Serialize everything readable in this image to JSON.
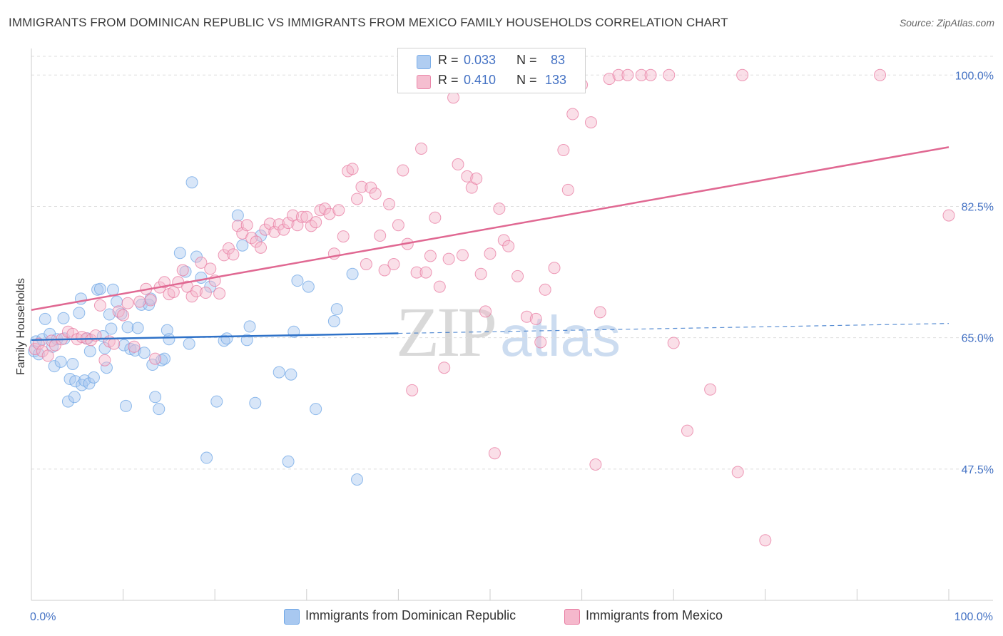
{
  "title": "IMMIGRANTS FROM DOMINICAN REPUBLIC VS IMMIGRANTS FROM MEXICO FAMILY HOUSEHOLDS CORRELATION CHART",
  "source": "Source: ZipAtlas.com",
  "watermark": {
    "zip": "ZIP",
    "atlas": "atlas"
  },
  "stats": [
    {
      "r_label": "R =",
      "r_value": "0.033",
      "n_label": "N =",
      "n_value": "83",
      "color": "#a8c8f0"
    },
    {
      "r_label": "R =",
      "r_value": "0.410",
      "n_label": "N =",
      "n_value": "133",
      "color": "#f5b8cc"
    }
  ],
  "chart_data": {
    "type": "scatter",
    "title": "IMMIGRANTS FROM DOMINICAN REPUBLIC VS IMMIGRANTS FROM MEXICO FAMILY HOUSEHOLDS CORRELATION CHART",
    "xlabel": "",
    "ylabel": "Family Households",
    "xlim": [
      0,
      100
    ],
    "ylim": [
      30,
      102.5
    ],
    "x_tick_labels": [
      "0.0%",
      "100.0%"
    ],
    "y_ticks": [
      47.5,
      65.0,
      82.5,
      100.0
    ],
    "y_tick_labels": [
      "47.5%",
      "65.0%",
      "82.5%",
      "100.0%"
    ],
    "grid": true,
    "legend_position": "bottom",
    "series": [
      {
        "name": "Immigrants from Dominican Republic",
        "color": "#6ea6e6",
        "fill": "#a8c8f0",
        "trend": {
          "x0": 0,
          "y0": 64.7,
          "x1": 100,
          "y1": 66.9,
          "solid_until": 40
        },
        "points": [
          [
            0.3,
            63.2
          ],
          [
            0.5,
            64.5
          ],
          [
            0.8,
            62.8
          ],
          [
            1.2,
            64.8
          ],
          [
            1.5,
            67.5
          ],
          [
            2.0,
            65.5
          ],
          [
            2.3,
            63.8
          ],
          [
            2.5,
            61.2
          ],
          [
            2.8,
            64.8
          ],
          [
            3.2,
            61.8
          ],
          [
            3.5,
            67.6
          ],
          [
            3.6,
            64.9
          ],
          [
            4.0,
            56.5
          ],
          [
            4.2,
            59.5
          ],
          [
            4.5,
            61.5
          ],
          [
            4.7,
            57.1
          ],
          [
            4.8,
            59.2
          ],
          [
            5.2,
            68.3
          ],
          [
            5.4,
            70.2
          ],
          [
            5.5,
            58.7
          ],
          [
            5.8,
            59.3
          ],
          [
            6.1,
            64.9
          ],
          [
            6.3,
            58.9
          ],
          [
            6.4,
            63.2
          ],
          [
            6.8,
            59.7
          ],
          [
            7.2,
            71.4
          ],
          [
            7.5,
            71.5
          ],
          [
            7.8,
            65.2
          ],
          [
            8.0,
            63.6
          ],
          [
            8.2,
            61.0
          ],
          [
            8.5,
            68.1
          ],
          [
            8.7,
            66.2
          ],
          [
            8.9,
            71.4
          ],
          [
            9.3,
            69.8
          ],
          [
            9.8,
            68.2
          ],
          [
            10.1,
            64.0
          ],
          [
            10.3,
            55.9
          ],
          [
            10.5,
            66.4
          ],
          [
            10.8,
            63.5
          ],
          [
            11.3,
            63.3
          ],
          [
            11.6,
            66.3
          ],
          [
            12.0,
            69.4
          ],
          [
            12.3,
            63.0
          ],
          [
            12.8,
            69.4
          ],
          [
            13.0,
            70.2
          ],
          [
            13.2,
            61.4
          ],
          [
            13.5,
            57.1
          ],
          [
            13.9,
            55.5
          ],
          [
            14.2,
            62.0
          ],
          [
            14.5,
            62.2
          ],
          [
            14.8,
            66.0
          ],
          [
            15.0,
            64.8
          ],
          [
            16.2,
            76.3
          ],
          [
            16.8,
            73.8
          ],
          [
            17.2,
            64.2
          ],
          [
            17.5,
            85.7
          ],
          [
            18.0,
            75.8
          ],
          [
            18.5,
            73.0
          ],
          [
            19.1,
            49.0
          ],
          [
            19.5,
            71.8
          ],
          [
            20.2,
            56.5
          ],
          [
            21.0,
            64.6
          ],
          [
            21.3,
            64.9
          ],
          [
            22.5,
            81.3
          ],
          [
            23.0,
            77.3
          ],
          [
            23.5,
            64.7
          ],
          [
            23.8,
            66.5
          ],
          [
            24.4,
            56.3
          ],
          [
            25.0,
            78.6
          ],
          [
            27.0,
            60.4
          ],
          [
            28.0,
            48.5
          ],
          [
            28.3,
            60.1
          ],
          [
            28.6,
            65.8
          ],
          [
            29.0,
            72.6
          ],
          [
            30.2,
            71.8
          ],
          [
            31.0,
            55.5
          ],
          [
            33.0,
            67.2
          ],
          [
            33.3,
            68.8
          ],
          [
            35.0,
            73.5
          ],
          [
            35.5,
            46.1
          ]
        ]
      },
      {
        "name": "Immigrants from Mexico",
        "color": "#e87aa0",
        "fill": "#f5b8cc",
        "trend": {
          "x0": 0,
          "y0": 68.7,
          "x1": 100,
          "y1": 90.4
        },
        "points": [
          [
            0.4,
            63.5
          ],
          [
            0.8,
            64.2
          ],
          [
            1.2,
            63.2
          ],
          [
            1.8,
            62.6
          ],
          [
            2.2,
            64.6
          ],
          [
            2.6,
            64.0
          ],
          [
            3.3,
            64.8
          ],
          [
            4.0,
            65.8
          ],
          [
            4.5,
            65.5
          ],
          [
            5.0,
            64.8
          ],
          [
            5.5,
            65.1
          ],
          [
            6.0,
            64.9
          ],
          [
            6.5,
            64.7
          ],
          [
            7.0,
            65.3
          ],
          [
            7.5,
            69.3
          ],
          [
            8.0,
            62.0
          ],
          [
            8.5,
            64.5
          ],
          [
            9.0,
            64.2
          ],
          [
            9.5,
            68.5
          ],
          [
            10.0,
            68.0
          ],
          [
            10.5,
            69.6
          ],
          [
            11.2,
            63.8
          ],
          [
            11.8,
            69.8
          ],
          [
            12.5,
            71.5
          ],
          [
            13.0,
            70.0
          ],
          [
            13.5,
            62.2
          ],
          [
            14.0,
            71.7
          ],
          [
            14.5,
            72.4
          ],
          [
            15.0,
            70.8
          ],
          [
            15.5,
            71.1
          ],
          [
            16.0,
            72.4
          ],
          [
            16.5,
            74.0
          ],
          [
            17.0,
            71.8
          ],
          [
            17.5,
            70.5
          ],
          [
            18.0,
            71.2
          ],
          [
            18.5,
            75.0
          ],
          [
            19.0,
            71.0
          ],
          [
            19.5,
            74.2
          ],
          [
            20.0,
            72.6
          ],
          [
            20.5,
            70.9
          ],
          [
            21.0,
            76.0
          ],
          [
            21.5,
            76.9
          ],
          [
            22.0,
            76.1
          ],
          [
            22.5,
            79.9
          ],
          [
            23.0,
            78.9
          ],
          [
            23.5,
            80.0
          ],
          [
            24.0,
            78.3
          ],
          [
            24.5,
            77.8
          ],
          [
            25.0,
            77.0
          ],
          [
            25.5,
            79.4
          ],
          [
            26.0,
            80.2
          ],
          [
            26.5,
            79.1
          ],
          [
            27.0,
            80.1
          ],
          [
            27.5,
            79.4
          ],
          [
            28.0,
            80.3
          ],
          [
            28.5,
            81.3
          ],
          [
            29.0,
            80.0
          ],
          [
            29.5,
            81.1
          ],
          [
            30.0,
            81.1
          ],
          [
            30.5,
            79.9
          ],
          [
            31.0,
            80.4
          ],
          [
            31.5,
            82.0
          ],
          [
            32.0,
            82.2
          ],
          [
            32.5,
            81.5
          ],
          [
            33.0,
            76.2
          ],
          [
            33.5,
            82.0
          ],
          [
            34.0,
            78.5
          ],
          [
            34.5,
            87.2
          ],
          [
            35.0,
            87.5
          ],
          [
            35.5,
            83.5
          ],
          [
            36.0,
            85.1
          ],
          [
            36.5,
            74.8
          ],
          [
            37.0,
            85.0
          ],
          [
            37.5,
            84.2
          ],
          [
            38.0,
            78.6
          ],
          [
            38.5,
            74.0
          ],
          [
            39.0,
            82.8
          ],
          [
            39.5,
            74.8
          ],
          [
            40.0,
            80.0
          ],
          [
            40.5,
            87.3
          ],
          [
            41.0,
            77.5
          ],
          [
            41.5,
            58.0
          ],
          [
            42.0,
            73.7
          ],
          [
            42.5,
            90.2
          ],
          [
            43.0,
            73.7
          ],
          [
            43.5,
            75.9
          ],
          [
            44.0,
            81.0
          ],
          [
            44.5,
            71.8
          ],
          [
            45.0,
            61.0
          ],
          [
            45.5,
            75.5
          ],
          [
            46.0,
            97.0
          ],
          [
            46.5,
            88.1
          ],
          [
            47.0,
            76.0
          ],
          [
            47.5,
            86.5
          ],
          [
            48.0,
            85.0
          ],
          [
            48.5,
            86.2
          ],
          [
            49.0,
            73.5
          ],
          [
            49.5,
            68.5
          ],
          [
            50.0,
            76.2
          ],
          [
            50.5,
            49.6
          ],
          [
            51.0,
            82.2
          ],
          [
            51.5,
            78.0
          ],
          [
            52.0,
            77.2
          ],
          [
            53.0,
            73.2
          ],
          [
            54.0,
            67.8
          ],
          [
            55.0,
            67.5
          ],
          [
            56.0,
            71.4
          ],
          [
            57.0,
            74.3
          ],
          [
            58.0,
            90.0
          ],
          [
            58.5,
            84.7
          ],
          [
            59.0,
            94.8
          ],
          [
            61.0,
            93.7
          ],
          [
            61.5,
            48.1
          ],
          [
            62.0,
            68.4
          ],
          [
            63.0,
            99.5
          ],
          [
            64.0,
            100.0
          ],
          [
            65.0,
            100.0
          ],
          [
            66.5,
            100.0
          ],
          [
            67.5,
            100.0
          ],
          [
            69.5,
            100.0
          ],
          [
            70.0,
            64.3
          ],
          [
            71.5,
            52.6
          ],
          [
            74.0,
            58.1
          ],
          [
            77.0,
            47.1
          ],
          [
            77.5,
            100.0
          ],
          [
            80.0,
            38.0
          ],
          [
            92.5,
            100.0
          ],
          [
            100.0,
            81.3
          ],
          [
            55.5,
            64.4
          ],
          [
            56.5,
            100.0
          ],
          [
            59.5,
            100.0
          ],
          [
            60.0,
            98.7
          ]
        ]
      }
    ]
  },
  "legend": [
    {
      "label": "Immigrants from Dominican Republic",
      "color": "#a8c8f0"
    },
    {
      "label": "Immigrants from Mexico",
      "color": "#f5b8cc"
    }
  ]
}
